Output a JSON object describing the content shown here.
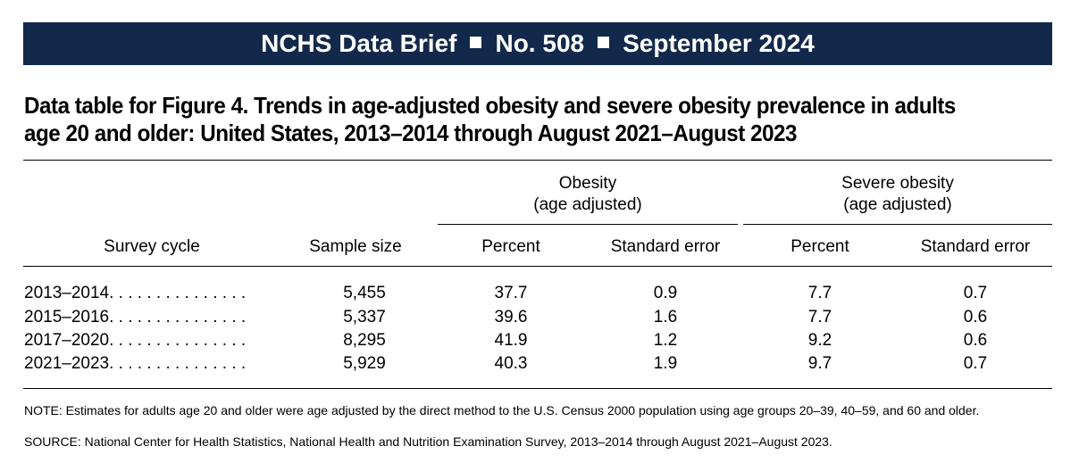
{
  "banner": {
    "publication": "NCHS Data Brief",
    "number": "No. 508",
    "date": "September 2024"
  },
  "title": {
    "line1": "Data table for Figure 4. Trends in age-adjusted obesity and severe obesity prevalence in adults",
    "line2": "age 20 and older: United States, 2013–2014 through August 2021–August 2023"
  },
  "table": {
    "group_headers": {
      "obesity_line1": "Obesity",
      "obesity_line2": "(age adjusted)",
      "severe_line1": "Severe obesity",
      "severe_line2": "(age adjusted)"
    },
    "columns": {
      "survey_cycle": "Survey cycle",
      "sample_size": "Sample size",
      "ob_percent": "Percent",
      "ob_se": "Standard error",
      "sev_percent": "Percent",
      "sev_se": "Standard error"
    },
    "rows": [
      {
        "cycle": "2013–2014",
        "leader": ". . . . . . . . . . . . . . .",
        "sample": "5,455",
        "ob_pct": "37.7",
        "ob_se": "0.9",
        "sev_pct": "7.7",
        "sev_se": "0.7"
      },
      {
        "cycle": "2015–2016",
        "leader": ". . . . . . . . . . . . . . .",
        "sample": "5,337",
        "ob_pct": "39.6",
        "ob_se": "1.6",
        "sev_pct": "7.7",
        "sev_se": "0.6"
      },
      {
        "cycle": "2017–2020",
        "leader": ". . . . . . . . . . . . . . .",
        "sample": "8,295",
        "ob_pct": "41.9",
        "ob_se": "1.2",
        "sev_pct": "9.2",
        "sev_se": "0.6"
      },
      {
        "cycle": "2021–2023",
        "leader": ". . . . . . . . . . . . . . .",
        "sample": "5,929",
        "ob_pct": "40.3",
        "ob_se": "1.9",
        "sev_pct": "9.7",
        "sev_se": "0.7"
      }
    ]
  },
  "notes": {
    "note": "NOTE: Estimates for adults age 20 and older were age adjusted by the direct method to the U.S. Census 2000 population using age groups 20–39, 40–59, and 60 and older.",
    "source": "SOURCE: National Center for Health Statistics, National Health and Nutrition Examination Survey, 2013–2014 through August 2021–August 2023."
  }
}
